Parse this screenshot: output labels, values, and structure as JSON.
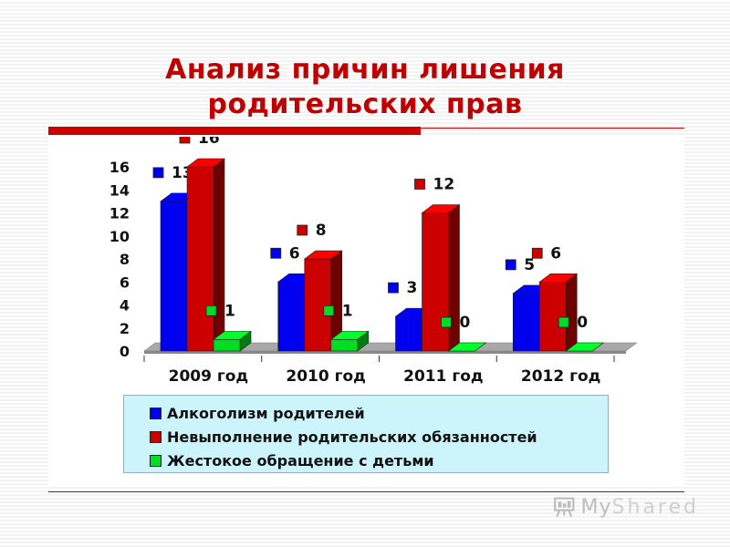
{
  "page": {
    "title_line1": "Анализ причин лишения",
    "title_line2": "родительских прав",
    "logo_text_main": "My",
    "logo_text_rest": "Shared",
    "logo_icon": "presentation-board-icon"
  },
  "chart_data": {
    "type": "bar",
    "title": "Анализ причин лишения родительских прав",
    "categories": [
      "2009 год",
      "2010 год",
      "2011 год",
      "2012 год"
    ],
    "series": [
      {
        "name": "Алкоголизм родителей",
        "values": [
          13,
          6,
          3,
          5
        ],
        "color": "#0000ee"
      },
      {
        "name": "Невыполнение родительских обязанностей",
        "values": [
          16,
          8,
          12,
          6
        ],
        "color": "#cc0000"
      },
      {
        "name": "Жестокое обращение с детьми",
        "values": [
          1,
          1,
          0,
          0
        ],
        "color": "#00dd22"
      }
    ],
    "ylim": [
      0,
      16
    ],
    "y_ticks": [
      0,
      2,
      4,
      6,
      8,
      10,
      12,
      14,
      16
    ],
    "style": "3d-clustered-column",
    "data_labels": true,
    "legend_position": "bottom",
    "grid": false
  },
  "colors": {
    "title": "#c00000",
    "accent_line": "#cc0000",
    "legend_bg": "#ccf5fb"
  }
}
